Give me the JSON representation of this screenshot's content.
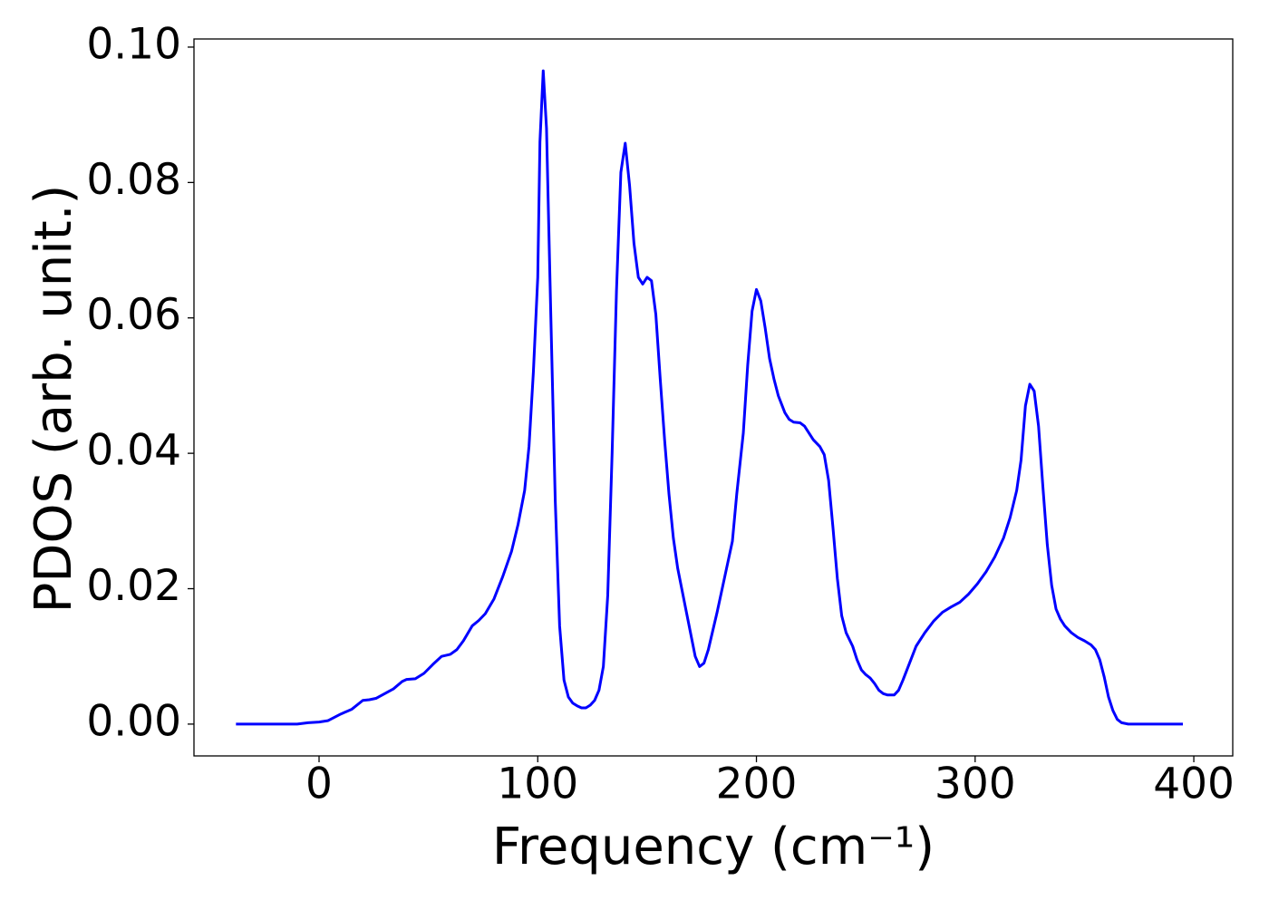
{
  "chart_data": {
    "type": "line",
    "xlabel": "Frequency (cm⁻¹)",
    "ylabel": "PDOS (arb. unit.)",
    "color": "#0000ff",
    "xlim": [
      -57.2,
      417.8
    ],
    "ylim": [
      -0.0047,
      0.1012
    ],
    "xticks": [
      0,
      100,
      200,
      300,
      400
    ],
    "yticks": [
      {
        "value": 0,
        "label": "0.00"
      },
      {
        "value": 0.02,
        "label": "0.02"
      },
      {
        "value": 0.04,
        "label": "0.04"
      },
      {
        "value": 0.06,
        "label": "0.06"
      },
      {
        "value": 0.08,
        "label": "0.08"
      },
      {
        "value": 0.1,
        "label": "0.10"
      }
    ],
    "x": [
      -38,
      -10,
      -5,
      0,
      4,
      10,
      15,
      20,
      23,
      26,
      30,
      34,
      38,
      40,
      44,
      48,
      52,
      56,
      60,
      63,
      66,
      70,
      73,
      76,
      80,
      84,
      88,
      91,
      94,
      96,
      98,
      100,
      101,
      102.5,
      104,
      106,
      108,
      110,
      112,
      114,
      116,
      118,
      120,
      122,
      124,
      126,
      128,
      130,
      132,
      134,
      136,
      138,
      140,
      142,
      144,
      146,
      148,
      150,
      152,
      154,
      156,
      158,
      160,
      162,
      164,
      168,
      172,
      174,
      176,
      178,
      182,
      186,
      189,
      191,
      194,
      196,
      198,
      200,
      202,
      204,
      206,
      208,
      210,
      213,
      215,
      217,
      220,
      222,
      224,
      226,
      229,
      231,
      233,
      235,
      237,
      239,
      241,
      244,
      246,
      248,
      250,
      252,
      254,
      256,
      258,
      260,
      263,
      265,
      267,
      270,
      273,
      277,
      281,
      285,
      289,
      293,
      297,
      301,
      305,
      309,
      313,
      316,
      319,
      321,
      323,
      325,
      327,
      329,
      331,
      333,
      335,
      337,
      339,
      341,
      344,
      347,
      350,
      353,
      355,
      357,
      359,
      361,
      363,
      365,
      367,
      370,
      380,
      395
    ],
    "values": [
      0,
      0,
      0.0002,
      0.0003,
      0.0005,
      0.0015,
      0.0022,
      0.0035,
      0.0036,
      0.0038,
      0.0045,
      0.0052,
      0.0063,
      0.0066,
      0.0067,
      0.0075,
      0.0088,
      0.01,
      0.0103,
      0.011,
      0.0123,
      0.0145,
      0.0153,
      0.0163,
      0.0185,
      0.0218,
      0.0255,
      0.0295,
      0.0345,
      0.041,
      0.052,
      0.066,
      0.086,
      0.0965,
      0.088,
      0.06,
      0.033,
      0.0145,
      0.0065,
      0.004,
      0.0031,
      0.0027,
      0.0024,
      0.0024,
      0.0028,
      0.0035,
      0.005,
      0.0085,
      0.019,
      0.04,
      0.064,
      0.0815,
      0.0858,
      0.0795,
      0.071,
      0.066,
      0.065,
      0.066,
      0.0655,
      0.0605,
      0.051,
      0.042,
      0.034,
      0.0275,
      0.023,
      0.0165,
      0.01,
      0.0085,
      0.009,
      0.011,
      0.0165,
      0.0225,
      0.027,
      0.034,
      0.043,
      0.053,
      0.061,
      0.0642,
      0.0625,
      0.0585,
      0.054,
      0.051,
      0.0485,
      0.046,
      0.045,
      0.0446,
      0.0445,
      0.044,
      0.043,
      0.042,
      0.041,
      0.0398,
      0.036,
      0.029,
      0.0215,
      0.016,
      0.0135,
      0.0115,
      0.0095,
      0.008,
      0.0073,
      0.0068,
      0.006,
      0.005,
      0.0045,
      0.0043,
      0.0043,
      0.005,
      0.0065,
      0.009,
      0.0115,
      0.0135,
      0.0152,
      0.0165,
      0.0173,
      0.018,
      0.0192,
      0.0207,
      0.0225,
      0.0247,
      0.0275,
      0.0305,
      0.0345,
      0.039,
      0.047,
      0.0502,
      0.0492,
      0.044,
      0.035,
      0.0265,
      0.0205,
      0.017,
      0.0155,
      0.0145,
      0.0135,
      0.0128,
      0.0123,
      0.0117,
      0.011,
      0.0095,
      0.007,
      0.004,
      0.002,
      0.0007,
      0.0002,
      0,
      0,
      0
    ]
  }
}
